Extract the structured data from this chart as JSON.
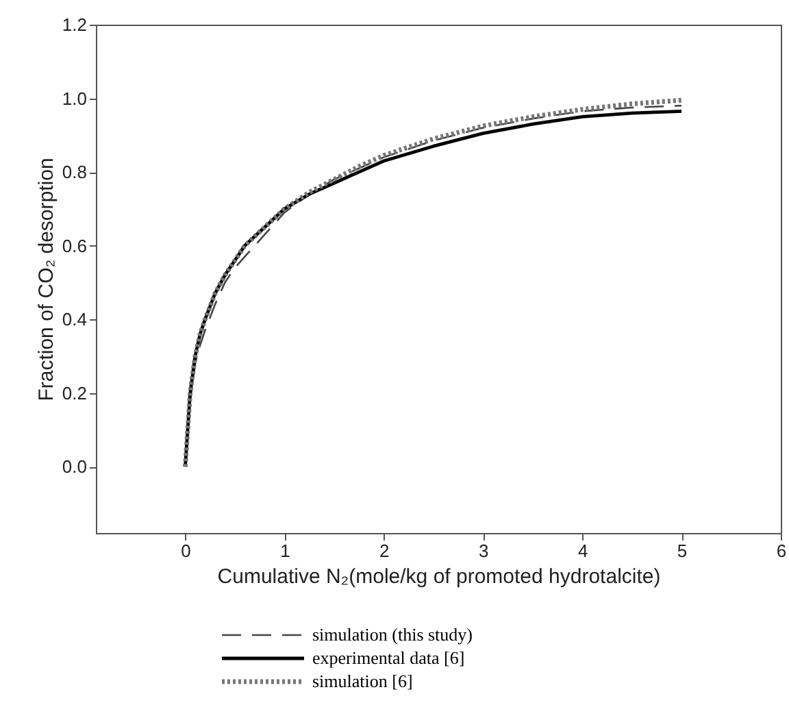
{
  "chart_data": {
    "type": "line",
    "xlabel": "Cumulative N₂(mole/kg of promoted hydrotalcite)",
    "ylabel": "Fraction of CO₂ desorption",
    "x": [
      0,
      0.05,
      0.1,
      0.15,
      0.2,
      0.3,
      0.4,
      0.5,
      0.6,
      0.8,
      1.0,
      1.25,
      1.5,
      1.75,
      2,
      2.5,
      3,
      3.5,
      4,
      4.5,
      5
    ],
    "series": [
      {
        "name": "simulation (this study)",
        "color": "#444444",
        "line_style": "dashed",
        "values": [
          0,
          0.18,
          0.28,
          0.33,
          0.37,
          0.44,
          0.5,
          0.54,
          0.57,
          0.63,
          0.69,
          0.74,
          0.78,
          0.81,
          0.84,
          0.885,
          0.92,
          0.945,
          0.965,
          0.975,
          0.98
        ]
      },
      {
        "name": "experimental data [6]",
        "color": "#000000",
        "line_style": "solid",
        "values": [
          0,
          0.2,
          0.3,
          0.36,
          0.4,
          0.47,
          0.52,
          0.56,
          0.6,
          0.65,
          0.7,
          0.74,
          0.77,
          0.8,
          0.83,
          0.87,
          0.905,
          0.93,
          0.95,
          0.96,
          0.965
        ]
      },
      {
        "name": "simulation [6]",
        "color": "#777777",
        "line_style": "dotted",
        "values": [
          0,
          0.2,
          0.3,
          0.36,
          0.4,
          0.47,
          0.52,
          0.56,
          0.6,
          0.65,
          0.7,
          0.745,
          0.78,
          0.815,
          0.845,
          0.89,
          0.925,
          0.95,
          0.97,
          0.985,
          0.995
        ]
      }
    ],
    "xlim": [
      -0.9,
      6
    ],
    "xticks": [
      0,
      1,
      2,
      3,
      4,
      5,
      6
    ],
    "ylim": [
      -0.18,
      1.2
    ],
    "yticks": [
      {
        "value": 0,
        "label": "0.0"
      },
      {
        "value": 0.2,
        "label": "0.2"
      },
      {
        "value": 0.4,
        "label": "0.4"
      },
      {
        "value": 0.6,
        "label": "0.6"
      },
      {
        "value": 0.8,
        "label": "0.8"
      },
      {
        "value": 1.0,
        "label": "1.0"
      },
      {
        "value": 1.2,
        "label": "1.2"
      }
    ],
    "grid": false,
    "legend": "bottom",
    "marker": "none"
  }
}
